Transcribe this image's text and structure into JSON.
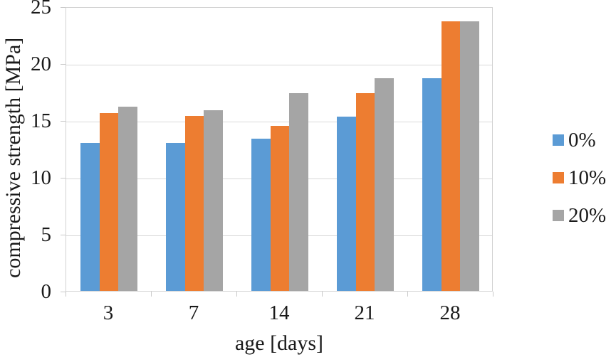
{
  "chart_data": {
    "type": "bar",
    "title": "",
    "xlabel": "age [days]",
    "ylabel": "compressive strength [MPa]",
    "categories": [
      "3",
      "7",
      "14",
      "21",
      "28"
    ],
    "series": [
      {
        "name": "0%",
        "color": "#5B9BD5",
        "values": [
          13.0,
          13.0,
          13.4,
          15.3,
          18.7
        ]
      },
      {
        "name": "10%",
        "color": "#ED7D31",
        "values": [
          15.6,
          15.4,
          14.5,
          17.4,
          23.7
        ]
      },
      {
        "name": "20%",
        "color": "#A5A5A5",
        "values": [
          16.2,
          15.9,
          17.4,
          18.7,
          23.7
        ]
      }
    ],
    "ylim": [
      0,
      25
    ],
    "yticks": [
      "0",
      "5",
      "10",
      "15",
      "20",
      "25"
    ],
    "ytick_interval": 5,
    "grid": true,
    "legend_position": "right"
  },
  "colors": {
    "background": "#FFFFFF",
    "gridline": "#D9D9D9",
    "axis_line": "#C9C9C9",
    "text": "#1A1A1A"
  }
}
